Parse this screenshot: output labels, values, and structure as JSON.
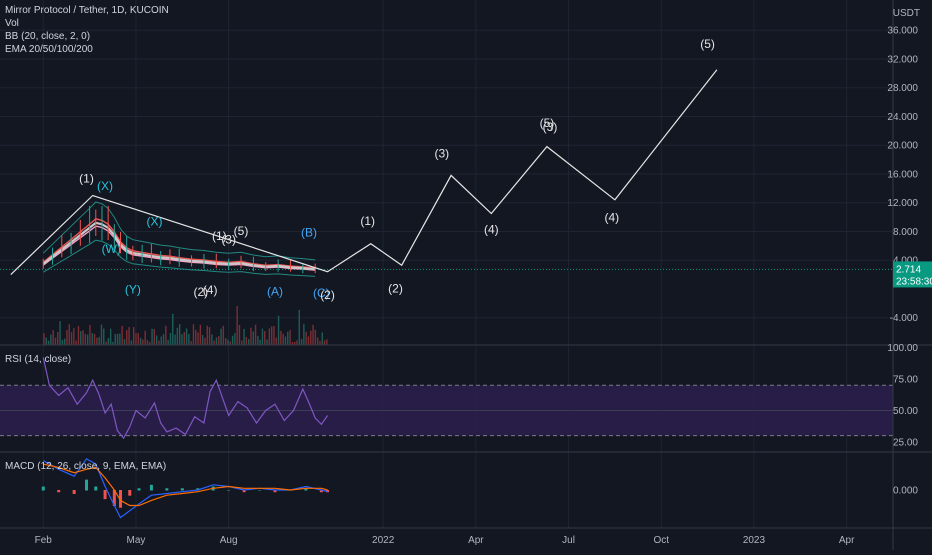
{
  "window": {
    "symbol_title": "Mirror Protocol / Tether, 1D, KUCOIN"
  },
  "colors": {
    "background": "#131722",
    "grid": "#1f2433",
    "separator": "#363a45",
    "wave_line": "#e6e6e6",
    "price_badge": "#089981",
    "rsi_line": "#7e57c2",
    "rsi_band": "#2a1e4a",
    "macd_line": "#2962ff",
    "signal_line": "#ff6d00",
    "hist_up": "#26a69a",
    "hist_down": "#ef5350",
    "label_white": "#e6e6e6",
    "label_teal": "#26c6da",
    "label_blue": "#42a5f5"
  },
  "legends": {
    "main": [
      "Vol",
      "BB (20, close, 2, 0)",
      "EMA 20/50/100/200"
    ],
    "rsi": "RSI (14, close)",
    "macd": "MACD (12, 26, close, 9, EMA, EMA)"
  },
  "price_axis": {
    "currency": "USDT",
    "ticks": [
      "36.000",
      "32.000",
      "28.000",
      "24.000",
      "20.000",
      "16.000",
      "12.000",
      "8.000",
      "4.000",
      "-4.000"
    ],
    "current_price": "2.714",
    "countdown": "23:58:30"
  },
  "rsi_axis": {
    "ticks": [
      "100.00",
      "75.00",
      "50.00",
      "25.00"
    ]
  },
  "macd_axis": {
    "ticks": [
      "0.000"
    ]
  },
  "time_axis": {
    "ticks": [
      "Feb",
      "May",
      "Aug",
      "2022",
      "Apr",
      "Jul",
      "Oct",
      "2023",
      "Apr"
    ]
  },
  "chart_data": {
    "type": "line",
    "title": "Mirror Protocol / Tether, 1D, KUCOIN",
    "y_unit": "USDT",
    "ylim": [
      -7.8,
      40.2
    ],
    "x_unit": "months since 2021-01-01",
    "xlim": [
      -0.4,
      28.5
    ],
    "grid": true,
    "elliott_projection": {
      "color": "wave_line",
      "points": [
        [
          -0.05,
          2.0
        ],
        [
          2.6,
          13.0
        ],
        [
          10.2,
          2.4
        ],
        [
          11.6,
          6.3
        ],
        [
          12.6,
          3.3
        ],
        [
          14.2,
          15.8
        ],
        [
          15.5,
          10.5
        ],
        [
          17.3,
          19.8
        ],
        [
          19.5,
          12.4
        ],
        [
          22.8,
          30.5
        ]
      ]
    },
    "price_series": [
      [
        1.0,
        3.5
      ],
      [
        1.3,
        4.5
      ],
      [
        1.6,
        5.5
      ],
      [
        1.9,
        6.5
      ],
      [
        2.2,
        7.5
      ],
      [
        2.5,
        8.5
      ],
      [
        2.7,
        9.2
      ],
      [
        2.9,
        9.0
      ],
      [
        3.1,
        8.5
      ],
      [
        3.3,
        7.5
      ],
      [
        3.5,
        6.2
      ],
      [
        3.7,
        5.4
      ],
      [
        3.9,
        5.0
      ],
      [
        4.2,
        4.8
      ],
      [
        4.5,
        4.6
      ],
      [
        4.8,
        4.4
      ],
      [
        5.1,
        4.3
      ],
      [
        5.4,
        4.1
      ],
      [
        5.8,
        3.9
      ],
      [
        6.2,
        3.8
      ],
      [
        6.6,
        3.6
      ],
      [
        7.0,
        3.5
      ],
      [
        7.4,
        3.6
      ],
      [
        7.8,
        3.3
      ],
      [
        8.2,
        3.1
      ],
      [
        8.6,
        3.2
      ],
      [
        9.0,
        3.0
      ],
      [
        9.4,
        2.9
      ],
      [
        9.8,
        2.75
      ]
    ],
    "wave_labels": [
      {
        "text": "(1)",
        "x": 2.4,
        "y": 14.8,
        "color": "label_white"
      },
      {
        "text": "(X)",
        "x": 3.0,
        "y": 13.8,
        "color": "label_teal"
      },
      {
        "text": "(X)",
        "x": 4.6,
        "y": 8.8,
        "color": "label_teal"
      },
      {
        "text": "(W)",
        "x": 3.2,
        "y": 5.0,
        "color": "label_teal"
      },
      {
        "text": "(Y)",
        "x": 3.9,
        "y": -0.6,
        "color": "label_teal"
      },
      {
        "text": "(1)",
        "x": 6.7,
        "y": 6.8,
        "color": "label_white"
      },
      {
        "text": "(3)",
        "x": 7.0,
        "y": 6.3,
        "color": "label_white"
      },
      {
        "text": "(5)",
        "x": 7.4,
        "y": 7.5,
        "color": "label_white"
      },
      {
        "text": "(2)",
        "x": 6.1,
        "y": -1.0,
        "color": "label_white"
      },
      {
        "text": "(4)",
        "x": 6.4,
        "y": -0.7,
        "color": "label_white"
      },
      {
        "text": "(A)",
        "x": 8.5,
        "y": -0.9,
        "color": "label_blue"
      },
      {
        "text": "(B)",
        "x": 9.6,
        "y": 7.3,
        "color": "label_blue"
      },
      {
        "text": "(C)",
        "x": 10.0,
        "y": -1.1,
        "color": "label_blue"
      },
      {
        "text": "(2)",
        "x": 10.2,
        "y": -1.4,
        "color": "label_white"
      },
      {
        "text": "(1)",
        "x": 11.5,
        "y": 8.9,
        "color": "label_white"
      },
      {
        "text": "(2)",
        "x": 12.4,
        "y": -0.5,
        "color": "label_white"
      },
      {
        "text": "(3)",
        "x": 13.9,
        "y": 18.3,
        "color": "label_white"
      },
      {
        "text": "(4)",
        "x": 15.5,
        "y": 7.7,
        "color": "label_white"
      },
      {
        "text": "(5)",
        "x": 17.3,
        "y": 22.5,
        "color": "label_white"
      },
      {
        "text": "(3)",
        "x": 17.4,
        "y": 22.0,
        "color": "label_white"
      },
      {
        "text": "(4)",
        "x": 19.4,
        "y": 9.4,
        "color": "label_white"
      },
      {
        "text": "(5)",
        "x": 22.5,
        "y": 33.5,
        "color": "label_white"
      }
    ],
    "rsi": {
      "ylim": [
        17,
        102
      ],
      "levels": [
        30,
        70
      ],
      "values": [
        [
          1.0,
          92
        ],
        [
          1.2,
          70
        ],
        [
          1.5,
          62
        ],
        [
          1.8,
          68
        ],
        [
          2.1,
          55
        ],
        [
          2.4,
          64
        ],
        [
          2.6,
          74
        ],
        [
          2.8,
          63
        ],
        [
          3.0,
          48
        ],
        [
          3.2,
          55
        ],
        [
          3.4,
          34
        ],
        [
          3.6,
          28
        ],
        [
          3.8,
          37
        ],
        [
          4.0,
          50
        ],
        [
          4.3,
          44
        ],
        [
          4.6,
          56
        ],
        [
          4.8,
          40
        ],
        [
          5.0,
          33
        ],
        [
          5.3,
          36
        ],
        [
          5.6,
          31
        ],
        [
          5.9,
          45
        ],
        [
          6.2,
          40
        ],
        [
          6.4,
          65
        ],
        [
          6.6,
          74
        ],
        [
          6.8,
          60
        ],
        [
          7.0,
          46
        ],
        [
          7.3,
          57
        ],
        [
          7.6,
          52
        ],
        [
          7.9,
          40
        ],
        [
          8.2,
          50
        ],
        [
          8.5,
          55
        ],
        [
          8.8,
          42
        ],
        [
          9.1,
          50
        ],
        [
          9.4,
          67
        ],
        [
          9.6,
          56
        ],
        [
          9.8,
          44
        ],
        [
          10.0,
          39
        ],
        [
          10.2,
          46
        ]
      ]
    },
    "macd": {
      "ylim": [
        -2.2,
        2.2
      ],
      "macd_line": [
        [
          1.0,
          1.7
        ],
        [
          1.5,
          1.2
        ],
        [
          2.0,
          0.8
        ],
        [
          2.4,
          1.8
        ],
        [
          2.7,
          1.5
        ],
        [
          3.0,
          0.2
        ],
        [
          3.3,
          -0.9
        ],
        [
          3.5,
          -1.6
        ],
        [
          3.8,
          -1.2
        ],
        [
          4.1,
          -0.8
        ],
        [
          4.5,
          -0.3
        ],
        [
          5.0,
          -0.2
        ],
        [
          5.5,
          -0.1
        ],
        [
          6.0,
          0.0
        ],
        [
          6.5,
          0.3
        ],
        [
          7.0,
          0.2
        ],
        [
          7.5,
          0.0
        ],
        [
          8.0,
          0.1
        ],
        [
          8.5,
          0.0
        ],
        [
          9.0,
          0.0
        ],
        [
          9.5,
          0.2
        ],
        [
          10.0,
          0.0
        ],
        [
          10.2,
          -0.1
        ]
      ],
      "signal_line": [
        [
          1.0,
          1.5
        ],
        [
          1.5,
          1.3
        ],
        [
          2.0,
          1.0
        ],
        [
          2.4,
          1.2
        ],
        [
          2.7,
          1.3
        ],
        [
          3.0,
          0.7
        ],
        [
          3.3,
          0.0
        ],
        [
          3.5,
          -0.6
        ],
        [
          3.8,
          -0.9
        ],
        [
          4.1,
          -0.9
        ],
        [
          4.5,
          -0.6
        ],
        [
          5.0,
          -0.3
        ],
        [
          5.5,
          -0.2
        ],
        [
          6.0,
          -0.1
        ],
        [
          6.5,
          0.1
        ],
        [
          7.0,
          0.2
        ],
        [
          7.5,
          0.1
        ],
        [
          8.0,
          0.1
        ],
        [
          8.5,
          0.1
        ],
        [
          9.0,
          0.0
        ],
        [
          9.5,
          0.1
        ],
        [
          10.0,
          0.1
        ],
        [
          10.2,
          0.0
        ]
      ]
    }
  }
}
